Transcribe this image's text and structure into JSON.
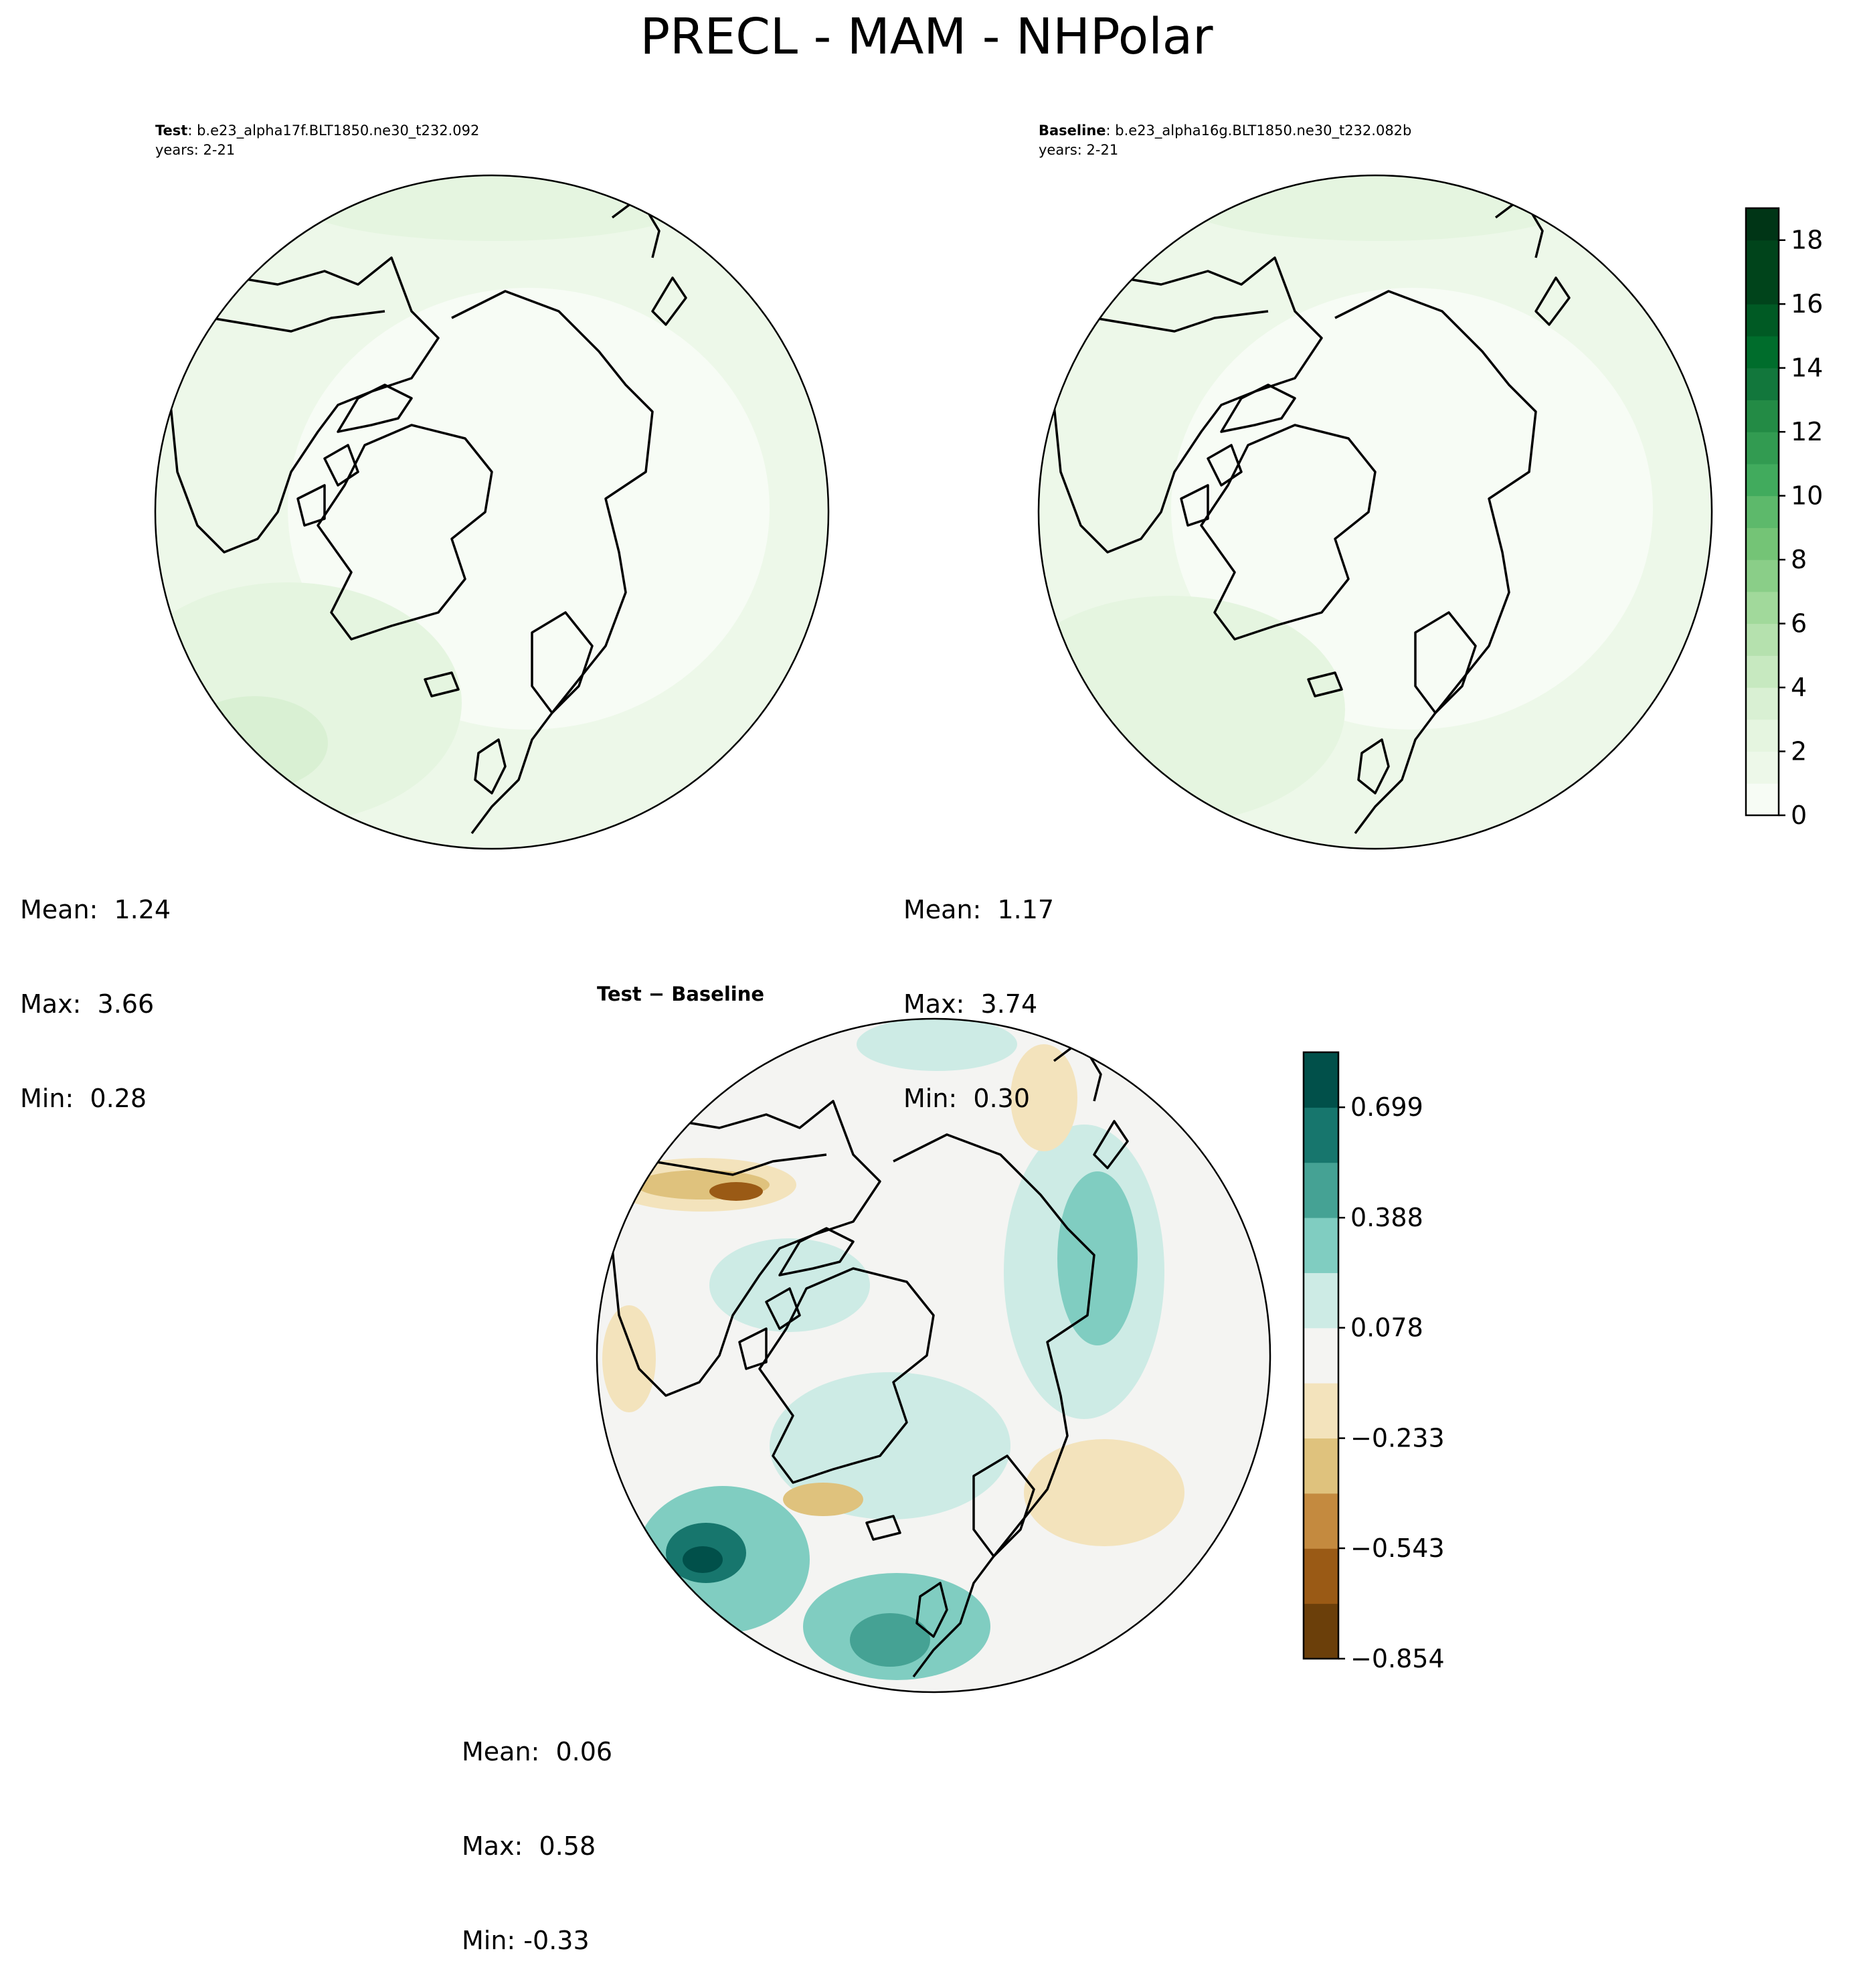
{
  "figure": {
    "title": "PRECL - MAM - NHPolar"
  },
  "panels": {
    "test": {
      "label": "Test",
      "case": ": b.e23_alpha17f.BLT1850.ne30_t232.092",
      "years": "years: 2-21",
      "stats": {
        "mean": "Mean:  1.24",
        "max": "Max:  3.66",
        "min": "Min:  0.28"
      }
    },
    "baseline": {
      "label": "Baseline",
      "case": ": b.e23_alpha16g.BLT1850.ne30_t232.082b",
      "years": "years: 2-21",
      "stats": {
        "mean": "Mean:  1.17",
        "max": "Max:  3.74",
        "min": "Min:  0.30"
      }
    },
    "difference": {
      "title_a": "Test",
      "title_sep": " − ",
      "title_b": "Baseline",
      "stats": {
        "mean": "Mean:  0.06",
        "max": "Max:  0.58",
        "min": "Min: -0.33"
      }
    }
  },
  "colorbars": {
    "main": {
      "ticks": [
        "0",
        "2",
        "4",
        "6",
        "8",
        "10",
        "12",
        "14",
        "16",
        "18"
      ],
      "tick_values": [
        0,
        2,
        4,
        6,
        8,
        10,
        12,
        14,
        16,
        18
      ],
      "range": [
        0,
        19
      ],
      "colors": [
        "#f7fcf5",
        "#edf8e9",
        "#e5f5e0",
        "#d9f0d3",
        "#c7e9c0",
        "#b5e1ae",
        "#a1d99b",
        "#8ace88",
        "#74c476",
        "#5db96b",
        "#41ab5d",
        "#329b51",
        "#238b45",
        "#12773c",
        "#006d2c",
        "#005a24",
        "#00441b",
        "#00441b",
        "#003516"
      ]
    },
    "diff": {
      "ticks": [
        "0.699",
        "0.388",
        "0.078",
        "−0.233",
        "−0.543",
        "−0.854"
      ],
      "tick_values": [
        0.699,
        0.388,
        0.078,
        -0.233,
        -0.543,
        -0.854
      ],
      "range": [
        -0.854,
        0.854
      ],
      "colors": [
        "#6b3f0a",
        "#9a5a15",
        "#c48a3f",
        "#dfc27d",
        "#f3e3bc",
        "#f4f4f2",
        "#cdebe5",
        "#80cdc1",
        "#45a294",
        "#17766d",
        "#01504a"
      ]
    }
  },
  "map_colors": {
    "test_shades": [
      "#f7fcf5",
      "#edf8e9",
      "#e5f5e0",
      "#d9f0d3"
    ],
    "diff_shades": {
      "neutral": "#f4f4f2",
      "teal_light": "#cdebe5",
      "teal": "#80cdc1",
      "teal_dark": "#17766d",
      "teal_darkest": "#01504a",
      "tan_light": "#f3e3bc",
      "tan": "#dfc27d",
      "brown": "#9a5a15"
    }
  }
}
